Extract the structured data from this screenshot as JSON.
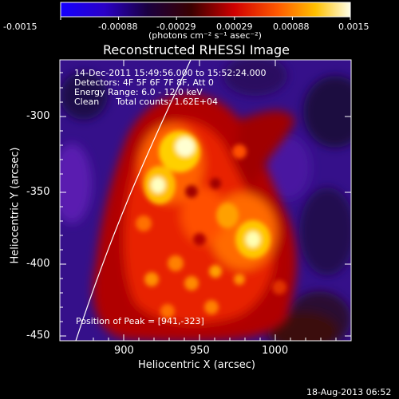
{
  "colorbar": {
    "tick_labels": [
      "-0.0015",
      "-0.00088",
      "-0.00029",
      "0.00029",
      "0.00088",
      "0.0015"
    ],
    "units": "(photons cm⁻² s⁻¹ asec⁻²)",
    "colors": [
      "#1500ff",
      "#000000",
      "#c00000",
      "#ff5000",
      "#ffc000",
      "#ffffff"
    ]
  },
  "plot": {
    "title": "Reconstructed RHESSI Image",
    "info_lines": [
      "14-Dec-2011 15:49:56.000 to 15:52:24.000",
      "Detectors: 4F 5F 6F 7F 8F, Att 0",
      "Energy Range: 6.0 - 12.0 keV",
      "Clean      Total counts: 1.62E+04"
    ],
    "peak_label": "Position of Peak = [941,-323]",
    "xlabel": "Heliocentric X (arcsec)",
    "ylabel": "Heliocentric Y (arcsec)",
    "x_ticks": [
      "900",
      "950",
      "1000"
    ],
    "y_ticks": [
      "-300",
      "-350",
      "-400",
      "-450"
    ]
  },
  "chart_data": {
    "type": "heatmap",
    "title": "Reconstructed RHESSI Image",
    "xlabel": "Heliocentric X (arcsec)",
    "ylabel": "Heliocentric Y (arcsec)",
    "xlim": [
      860,
      1045
    ],
    "ylim": [
      -452,
      -263
    ],
    "color_range": [
      -0.0015,
      0.0015
    ],
    "peak": [
      941,
      -323
    ],
    "sources": [
      {
        "x": 937,
        "y": -322,
        "strength": 1.0
      },
      {
        "x": 917,
        "y": -342,
        "strength": 0.8
      },
      {
        "x": 992,
        "y": -388,
        "strength": 0.8
      },
      {
        "x": 975,
        "y": -365,
        "strength": 0.6
      },
      {
        "x": 948,
        "y": -360,
        "strength": 0.6
      },
      {
        "x": 930,
        "y": -395,
        "strength": 0.5
      },
      {
        "x": 960,
        "y": -425,
        "strength": 0.45
      },
      {
        "x": 1000,
        "y": -300,
        "strength": 0.4
      }
    ]
  },
  "footer": {
    "timestamp": "18-Aug-2013 06:52"
  }
}
